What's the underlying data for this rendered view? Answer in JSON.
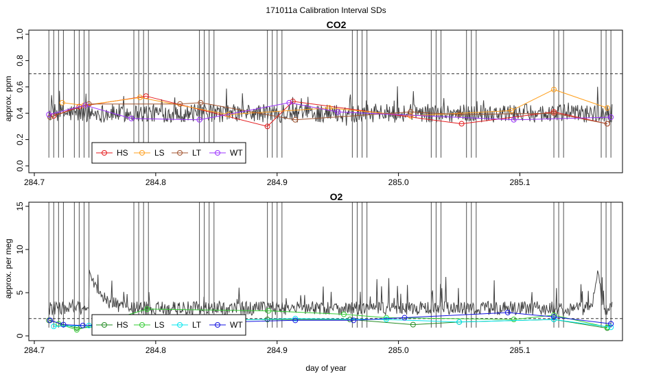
{
  "page": {
    "title": "171011a   Calibration Interval SDs"
  },
  "colors": {
    "trace": "#404040",
    "spike": "#606060",
    "threshold": "#303030",
    "co2": {
      "HS": "#e41a1c",
      "LS": "#ff9f1c",
      "LT": "#a0522d",
      "WT": "#9b30ff"
    },
    "o2": {
      "HS": "#228b22",
      "LS": "#32cd32",
      "LT": "#00e5ee",
      "WT": "#1010e0"
    }
  },
  "chart_data": [
    {
      "id": "co2",
      "type": "line",
      "title": "CO2",
      "xlabel": "",
      "ylabel": "approx. ppm",
      "xlim": [
        284.7,
        285.18
      ],
      "ylim": [
        0.0,
        1.0
      ],
      "x_ticks": [
        "284.7",
        "284.8",
        "284.9",
        "285.0",
        "285.1"
      ],
      "y_ticks": [
        "0.0",
        "0.2",
        "0.4",
        "0.6",
        "0.8",
        "1.0"
      ],
      "threshold": 0.7,
      "legend": {
        "position": "bottom-left",
        "entries": [
          "HS",
          "LS",
          "LT",
          "WT"
        ]
      },
      "spike_groups": [
        [
          284.712,
          284.716,
          284.72,
          284.724
        ],
        [
          284.733,
          284.737,
          284.741,
          284.745
        ],
        [
          284.782,
          284.786,
          284.79,
          284.794
        ],
        [
          284.836,
          284.84,
          284.844,
          284.848
        ],
        [
          284.892,
          284.896,
          284.9,
          284.904
        ],
        [
          284.962,
          284.966,
          284.97,
          284.974
        ],
        [
          285.027,
          285.031,
          285.035
        ],
        [
          285.056,
          285.06,
          285.064
        ],
        [
          285.128,
          285.132,
          285.136
        ],
        [
          285.167,
          285.171,
          285.175
        ]
      ],
      "series": [
        {
          "name": "HS",
          "x": [
            284.716,
            284.737,
            284.792,
            284.892,
            284.913,
            285.052,
            285.128,
            285.172
          ],
          "y": [
            0.38,
            0.45,
            0.53,
            0.3,
            0.49,
            0.32,
            0.41,
            0.32
          ]
        },
        {
          "name": "LS",
          "x": [
            284.723,
            284.741,
            284.787,
            284.86,
            284.943,
            285.01,
            285.093,
            285.128,
            285.172
          ],
          "y": [
            0.48,
            0.46,
            0.52,
            0.39,
            0.44,
            0.38,
            0.42,
            0.58,
            0.44
          ]
        },
        {
          "name": "LT",
          "x": [
            284.713,
            284.745,
            284.82,
            284.837,
            284.915,
            285.01,
            285.05,
            285.128,
            285.172
          ],
          "y": [
            0.37,
            0.47,
            0.47,
            0.48,
            0.35,
            0.41,
            0.39,
            0.4,
            0.32
          ]
        },
        {
          "name": "WT",
          "x": [
            284.712,
            284.742,
            284.78,
            284.836,
            284.91,
            284.95,
            285.095,
            285.175
          ],
          "y": [
            0.39,
            0.46,
            0.36,
            0.35,
            0.48,
            0.41,
            0.35,
            0.37
          ]
        }
      ]
    },
    {
      "id": "o2",
      "type": "line",
      "title": "O2",
      "xlabel": "day of year",
      "ylabel": "approx. per meg",
      "xlim": [
        284.7,
        285.18
      ],
      "ylim": [
        0,
        15
      ],
      "x_ticks": [
        "284.7",
        "284.8",
        "284.9",
        "285.0",
        "285.1"
      ],
      "y_ticks": [
        "0",
        "5",
        "10",
        "15"
      ],
      "threshold": 2.0,
      "legend": {
        "position": "bottom-left",
        "entries": [
          "HS",
          "LS",
          "LT",
          "WT"
        ]
      },
      "spike_groups": [
        [
          284.712,
          284.716,
          284.72,
          284.724
        ],
        [
          284.733,
          284.737,
          284.741,
          284.745
        ],
        [
          284.782,
          284.786,
          284.79,
          284.794
        ],
        [
          284.836,
          284.84,
          284.844,
          284.848
        ],
        [
          284.892,
          284.896,
          284.9,
          284.904
        ],
        [
          284.962,
          284.966,
          284.97,
          284.974
        ],
        [
          285.027,
          285.031,
          285.035
        ],
        [
          285.056,
          285.06,
          285.064
        ],
        [
          285.128,
          285.132,
          285.136
        ],
        [
          285.167,
          285.171,
          285.175
        ]
      ],
      "series": [
        {
          "name": "HS",
          "x": [
            284.712,
            284.735,
            284.83,
            284.892,
            284.96,
            285.012,
            285.05,
            285.128,
            285.172
          ],
          "y": [
            1.8,
            0.9,
            1.8,
            1.9,
            1.9,
            1.3,
            1.6,
            1.9,
            0.9
          ]
        },
        {
          "name": "LS",
          "x": [
            284.72,
            284.735,
            284.793,
            284.893,
            284.955,
            284.99,
            285.095,
            285.128,
            285.172
          ],
          "y": [
            1.4,
            0.7,
            3.1,
            2.9,
            2.5,
            2.1,
            1.9,
            2.4,
            1.0
          ]
        },
        {
          "name": "LT",
          "x": [
            284.716,
            284.745,
            284.82,
            284.915,
            284.99,
            285.05,
            285.128,
            285.175
          ],
          "y": [
            1.1,
            1.2,
            1.7,
            2.0,
            1.9,
            1.6,
            1.9,
            1.0
          ]
        },
        {
          "name": "WT",
          "x": [
            284.713,
            284.724,
            284.74,
            284.915,
            284.963,
            285.005,
            285.09,
            285.128,
            285.175
          ],
          "y": [
            1.8,
            1.3,
            1.2,
            1.8,
            1.8,
            2.1,
            2.7,
            2.2,
            1.4
          ]
        }
      ]
    }
  ]
}
